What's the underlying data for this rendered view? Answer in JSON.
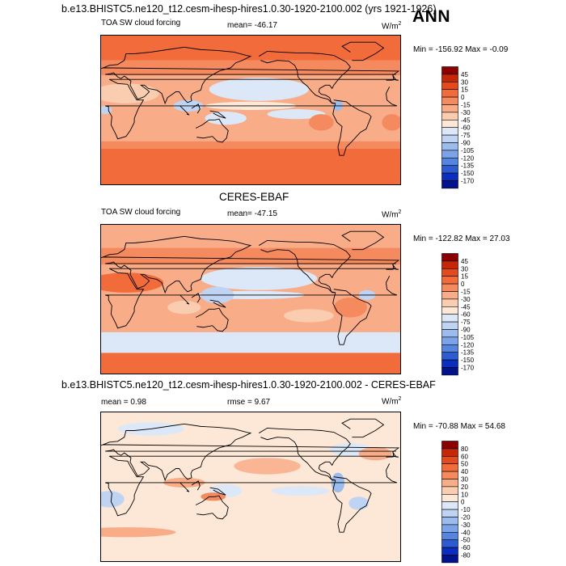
{
  "header": {
    "run_title": "b.e13.BHISTC5.ne120_t12.cesm-ihesp-hires1.0.30-1920-2100.002 (yrs 1921-1926)",
    "season": "ANN"
  },
  "panels": [
    {
      "variable": "TOA SW cloud forcing",
      "stat_text": "mean= -46.17",
      "units_base": "W/m",
      "units_exp": "2",
      "minmax_text": "Min = -156.92 Max =  -0.09"
    },
    {
      "title": "CERES-EBAF",
      "variable": "TOA SW cloud forcing",
      "stat_text": "mean= -47.15",
      "units_base": "W/m",
      "units_exp": "2",
      "minmax_text": "Min = -122.82 Max =  27.03"
    },
    {
      "title": "b.e13.BHISTC5.ne120_t12.cesm-ihesp-hires1.0.30-1920-2100.002 - CERES-EBAF",
      "stat_text": "mean =   0.98",
      "rmse_text": "rmse =   9.67",
      "units_base": "W/m",
      "units_exp": "2",
      "minmax_text": "Min = -70.88 Max =  54.68"
    }
  ],
  "chart_data": [
    {
      "type": "heatmap",
      "title": "TOA SW cloud forcing",
      "subtitle": "b.e13.BHISTC5.ne120_t12.cesm-ihesp-hires1.0.30-1920-2100.002 (yrs 1921-1926)",
      "season": "ANN",
      "units": "W/m2",
      "mean": -46.17,
      "min": -156.92,
      "max": -0.09,
      "colorbar_levels": [
        45,
        30,
        15,
        0,
        -15,
        -30,
        -45,
        -60,
        -75,
        -90,
        -105,
        -120,
        -135,
        -150,
        -170
      ],
      "colorbar_colors": [
        "#8b0000",
        "#c42808",
        "#e34a1e",
        "#f26b3b",
        "#f58a5e",
        "#f8ac88",
        "#fbcdb0",
        "#fde8d8",
        "#dce8f8",
        "#bfd4f3",
        "#9dbcee",
        "#7ca2e8",
        "#5685e0",
        "#2f5bd2",
        "#0a2fc0",
        "#00128c"
      ]
    },
    {
      "type": "heatmap",
      "title": "TOA SW cloud forcing",
      "subtitle": "CERES-EBAF",
      "units": "W/m2",
      "mean": -47.15,
      "min": -122.82,
      "max": 27.03,
      "colorbar_levels": [
        45,
        30,
        15,
        0,
        -15,
        -30,
        -45,
        -60,
        -75,
        -90,
        -105,
        -120,
        -135,
        -150,
        -170
      ],
      "colorbar_colors": [
        "#8b0000",
        "#c42808",
        "#e34a1e",
        "#f26b3b",
        "#f58a5e",
        "#f8ac88",
        "#fbcdb0",
        "#fde8d8",
        "#dce8f8",
        "#bfd4f3",
        "#9dbcee",
        "#7ca2e8",
        "#5685e0",
        "#2f5bd2",
        "#0a2fc0",
        "#00128c"
      ]
    },
    {
      "type": "heatmap",
      "title": "b.e13.BHISTC5.ne120_t12.cesm-ihesp-hires1.0.30-1920-2100.002 - CERES-EBAF",
      "units": "W/m2",
      "mean": 0.98,
      "rmse": 9.67,
      "min": -70.88,
      "max": 54.68,
      "colorbar_levels": [
        80,
        60,
        50,
        40,
        30,
        20,
        10,
        0,
        -10,
        -20,
        -30,
        -40,
        -50,
        -60,
        -80
      ],
      "colorbar_colors": [
        "#8b0000",
        "#c42808",
        "#e34a1e",
        "#f26b3b",
        "#f58a5e",
        "#f8ac88",
        "#fbcdb0",
        "#fde8d8",
        "#dce8f8",
        "#bfd4f3",
        "#9dbcee",
        "#7ca2e8",
        "#5685e0",
        "#2f5bd2",
        "#0a2fc0",
        "#00128c"
      ]
    }
  ]
}
